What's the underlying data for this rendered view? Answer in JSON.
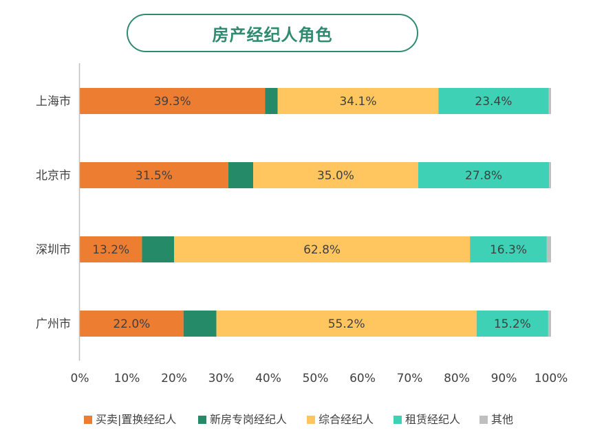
{
  "chart_data": {
    "type": "bar",
    "orientation": "horizontal",
    "stacked": true,
    "title": "房产经纪人角色",
    "categories": [
      "上海市",
      "北京市",
      "深圳市",
      "广州市"
    ],
    "series": [
      {
        "name": "买卖|置换经纪人",
        "color": "#ed7d31",
        "values": [
          39.3,
          31.5,
          13.2,
          22.0
        ],
        "labels": [
          "39.3%",
          "31.5%",
          "13.2%",
          "22.0%"
        ]
      },
      {
        "name": "新房专岗经纪人",
        "color": "#258a68",
        "values": [
          2.7,
          5.3,
          6.8,
          7.0
        ],
        "labels": [
          "",
          "",
          "",
          ""
        ]
      },
      {
        "name": "综合经纪人",
        "color": "#ffc660",
        "values": [
          34.1,
          35.0,
          62.8,
          55.2
        ],
        "labels": [
          "34.1%",
          "35.0%",
          "62.8%",
          "55.2%"
        ]
      },
      {
        "name": "租赁经纪人",
        "color": "#3ed1b5",
        "values": [
          23.4,
          27.8,
          16.3,
          15.2
        ],
        "labels": [
          "23.4%",
          "27.8%",
          "16.3%",
          "15.2%"
        ]
      },
      {
        "name": "其他",
        "color": "#bfbfbf",
        "values": [
          0.5,
          0.4,
          0.9,
          0.6
        ],
        "labels": [
          "",
          "",
          "",
          ""
        ]
      }
    ],
    "xlim": [
      0,
      100
    ],
    "xticks": [
      "0%",
      "10%",
      "20%",
      "30%",
      "40%",
      "50%",
      "60%",
      "70%",
      "80%",
      "90%",
      "100%"
    ],
    "grid": false,
    "legend_position": "bottom"
  }
}
